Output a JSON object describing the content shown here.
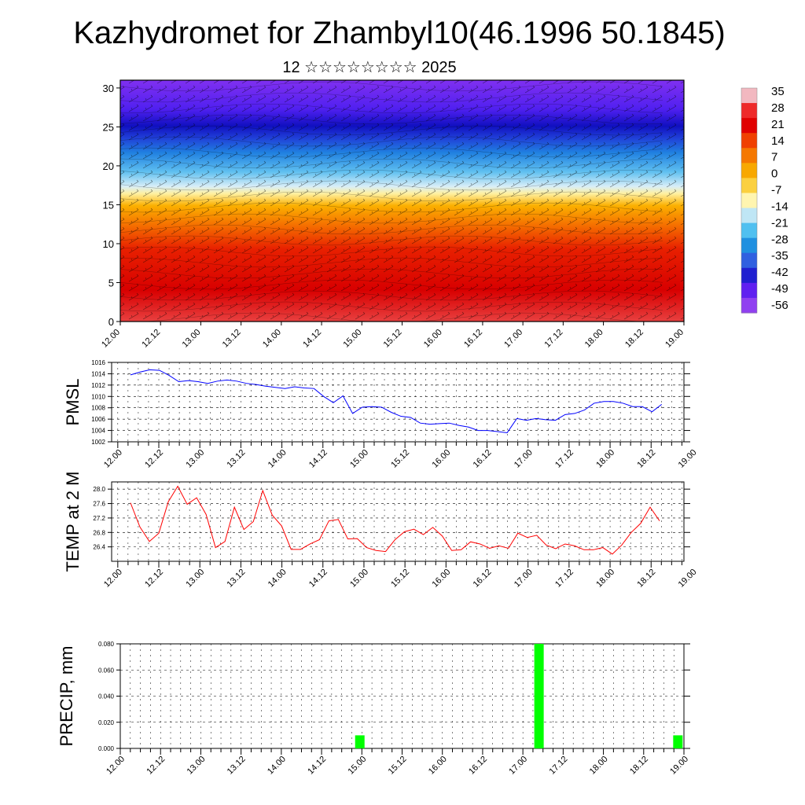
{
  "title": "Kazhydromet for Zhambyl10(46.1996 50.1845)",
  "subtitle": "12 ☆☆☆☆☆☆☆☆ 2025",
  "colorbar": {
    "labels": [
      "35",
      "28",
      "21",
      "14",
      "7",
      "0",
      "-7",
      "-14",
      "-21",
      "-28",
      "-35",
      "-42",
      "-49",
      "-56"
    ],
    "colors": [
      "#f2b8c0",
      "#ee2a2a",
      "#e00000",
      "#f04000",
      "#f57800",
      "#f8a800",
      "#fbd040",
      "#fff5b0",
      "#bfe6f5",
      "#50c0f0",
      "#2090e0",
      "#3060e0",
      "#2020d0",
      "#6020f0",
      "#9040f0"
    ]
  },
  "x_ticks": [
    "12.00",
    "12.12",
    "13.00",
    "13.12",
    "14.00",
    "14.12",
    "15.00",
    "15.12",
    "16.00",
    "16.12",
    "17.00",
    "17.12",
    "18.00",
    "18.12",
    "19.00"
  ],
  "chart_data": [
    {
      "type": "heatmap",
      "name": "cross-section",
      "yticks": [
        "0",
        "5",
        "10",
        "15",
        "20",
        "25",
        "30"
      ],
      "ylim": [
        0,
        31
      ],
      "xlim": [
        0,
        14
      ]
    },
    {
      "type": "line",
      "ylabel": "PMSL",
      "color": "#0000ff",
      "ylim": [
        1002,
        1016
      ],
      "yticks": [
        "1016",
        "1014",
        "1012",
        "1010",
        "1008",
        "1006",
        "1004",
        "1002"
      ],
      "x": [
        0,
        0.25,
        0.5,
        0.75,
        1,
        1.25,
        1.5,
        1.75,
        2,
        2.25,
        2.5,
        2.75,
        3,
        3.25,
        3.5,
        3.75,
        4,
        4.25,
        4.5,
        4.75,
        5,
        5.25,
        5.5,
        5.75,
        6,
        6.25,
        6.5,
        6.75,
        7,
        7.25,
        7.5,
        7.75,
        8,
        8.25,
        8.5,
        8.75,
        9,
        9.25,
        9.5,
        9.75,
        10,
        10.25,
        10.5,
        10.75,
        11,
        11.25,
        11.5,
        11.75,
        12,
        12.25,
        12.5,
        12.75,
        13,
        13.25,
        13.5,
        13.75,
        14
      ],
      "values": [
        1013.8,
        1014.3,
        1014.7,
        1014.6,
        1013.7,
        1012.6,
        1012.8,
        1012.6,
        1012.3,
        1012.7,
        1012.9,
        1012.7,
        1012.3,
        1012.1,
        1011.8,
        1011.6,
        1011.4,
        1011.7,
        1011.5,
        1011.4,
        1010.0,
        1008.9,
        1010.1,
        1007.0,
        1008.1,
        1008.2,
        1008.1,
        1007.2,
        1006.5,
        1006.3,
        1005.3,
        1005.1,
        1005.2,
        1005.3,
        1004.9,
        1004.6,
        1004.0,
        1004.0,
        1003.8,
        1003.6,
        1006.1,
        1005.8,
        1006.1,
        1005.9,
        1005.8,
        1006.8,
        1007.0,
        1007.6,
        1008.8,
        1009.1,
        1009.1,
        1008.8,
        1008.2,
        1008.2,
        1007.3,
        1008.6,
        null
      ],
      "xlim": [
        -0.15,
        13.8
      ]
    },
    {
      "type": "line",
      "ylabel": "TEMP at 2 M",
      "color": "#ff0000",
      "ylim": [
        26.0,
        28.2
      ],
      "yticks": [
        "28.0",
        "27.6",
        "27.2",
        "26.8",
        "26.4"
      ],
      "x": [
        0,
        0.25,
        0.5,
        0.75,
        1,
        1.25,
        1.5,
        1.75,
        2,
        2.25,
        2.5,
        2.75,
        3,
        3.25,
        3.5,
        3.75,
        4,
        4.25,
        4.5,
        4.75,
        5,
        5.25,
        5.5,
        5.75,
        6,
        6.25,
        6.5,
        6.75,
        7,
        7.25,
        7.5,
        7.75,
        8,
        8.25,
        8.5,
        8.75,
        9,
        9.25,
        9.5,
        9.75,
        10,
        10.25,
        10.5,
        10.75,
        11,
        11.25,
        11.5,
        11.75,
        12,
        12.25,
        12.5,
        12.75,
        13,
        13.25,
        13.5,
        13.75,
        14
      ],
      "values": [
        27.62,
        26.95,
        26.55,
        26.78,
        27.65,
        28.08,
        27.58,
        27.76,
        27.3,
        26.38,
        26.55,
        27.5,
        26.88,
        27.1,
        27.96,
        27.28,
        26.98,
        26.33,
        26.33,
        26.48,
        26.6,
        27.12,
        27.16,
        26.62,
        26.63,
        26.38,
        26.3,
        26.27,
        26.6,
        26.82,
        26.89,
        26.74,
        26.94,
        26.7,
        26.3,
        26.32,
        26.54,
        26.48,
        26.36,
        26.43,
        26.36,
        26.78,
        26.66,
        26.72,
        26.45,
        26.35,
        26.48,
        26.43,
        26.32,
        26.32,
        26.38,
        26.2,
        26.45,
        26.8,
        27.05,
        27.5,
        27.12
      ],
      "xlim": [
        -0.15,
        13.8
      ]
    },
    {
      "type": "bar",
      "ylabel": "PRECIP, mm",
      "color": "#00ff00",
      "ylim": [
        0,
        0.08
      ],
      "yticks": [
        "0.080",
        "0.060",
        "0.040",
        "0.020",
        "0.000"
      ],
      "x": [
        5.95,
        10.4,
        13.85
      ],
      "values": [
        0.01,
        0.08,
        0.01
      ],
      "xlim": [
        0,
        14
      ]
    }
  ]
}
